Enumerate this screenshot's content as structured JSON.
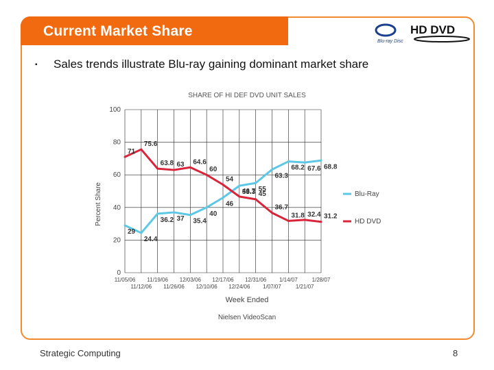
{
  "slide": {
    "title": "Current Market Share",
    "bullet": "Sales trends illustrate Blu-ray gaining dominant market share",
    "footer_left": "Strategic Computing",
    "page_number": "8",
    "logo_bluray": "Blu-ray Disc",
    "logo_hddvd": "HD DVD"
  },
  "colors": {
    "accent": "#f26a10",
    "bluray": "#5cc8e6",
    "hddvd": "#d8253a"
  },
  "chart_data": {
    "type": "line",
    "title": "SHARE OF HI DEF DVD UNIT SALES",
    "xlabel": "Week Ended",
    "ylabel": "Percent Share",
    "source": "Nielsen VideoScan",
    "ylim": [
      0,
      100
    ],
    "yticks": [
      "0",
      "20",
      "40",
      "60",
      "80",
      "100"
    ],
    "categories": [
      "11/05/06",
      "11/12/06",
      "11/19/06",
      "11/26/06",
      "12/03/06",
      "12/10/06",
      "12/17/06",
      "12/24/06",
      "12/31/06",
      "1/07/07",
      "1/14/07",
      "1/21/07",
      "1/28/07"
    ],
    "legend_position": "right",
    "series": [
      {
        "name": "Blu-Ray",
        "values": [
          29,
          24.4,
          36.2,
          37,
          35.4,
          40,
          46,
          53.3,
          55,
          63.3,
          68.2,
          67.6,
          68.8
        ]
      },
      {
        "name": "HD DVD",
        "values": [
          71,
          75.6,
          63.8,
          63,
          64.6,
          60,
          54,
          46.7,
          45,
          36.7,
          31.8,
          32.4,
          31.2
        ]
      }
    ],
    "data_labels": [
      {
        "text": "29",
        "x": 0,
        "y": 29
      },
      {
        "text": "24.4",
        "x": 1,
        "y": 24.4
      },
      {
        "text": "36.2",
        "x": 2,
        "y": 36.2
      },
      {
        "text": "37",
        "x": 3,
        "y": 37
      },
      {
        "text": "35.4",
        "x": 4,
        "y": 35.4
      },
      {
        "text": "40",
        "x": 5,
        "y": 40
      },
      {
        "text": "46",
        "x": 6,
        "y": 46
      },
      {
        "text": "53.3",
        "x": 7,
        "y": 53.3
      },
      {
        "text": "55",
        "x": 8,
        "y": 55
      },
      {
        "text": "63.3",
        "x": 9,
        "y": 63.3
      },
      {
        "text": "68.2",
        "x": 10,
        "y": 68.2
      },
      {
        "text": "67.6",
        "x": 11,
        "y": 67.6
      },
      {
        "text": "68.8",
        "x": 12,
        "y": 68.8
      },
      {
        "text": "71",
        "x": 0,
        "y": 71
      },
      {
        "text": "75.6",
        "x": 1,
        "y": 75.6
      },
      {
        "text": "63.8",
        "x": 2,
        "y": 63.8
      },
      {
        "text": "63",
        "x": 3,
        "y": 63
      },
      {
        "text": "64.6",
        "x": 4,
        "y": 64.6
      },
      {
        "text": "60",
        "x": 5,
        "y": 60
      },
      {
        "text": "54",
        "x": 6,
        "y": 54
      },
      {
        "text": "46.7",
        "x": 7,
        "y": 46.7
      },
      {
        "text": "45",
        "x": 8,
        "y": 45
      },
      {
        "text": "36.7",
        "x": 9,
        "y": 36.7
      },
      {
        "text": "31.8",
        "x": 10,
        "y": 31.8
      },
      {
        "text": "32.4",
        "x": 11,
        "y": 32.4
      },
      {
        "text": "31.2",
        "x": 12,
        "y": 31.2
      }
    ],
    "grid": true
  }
}
